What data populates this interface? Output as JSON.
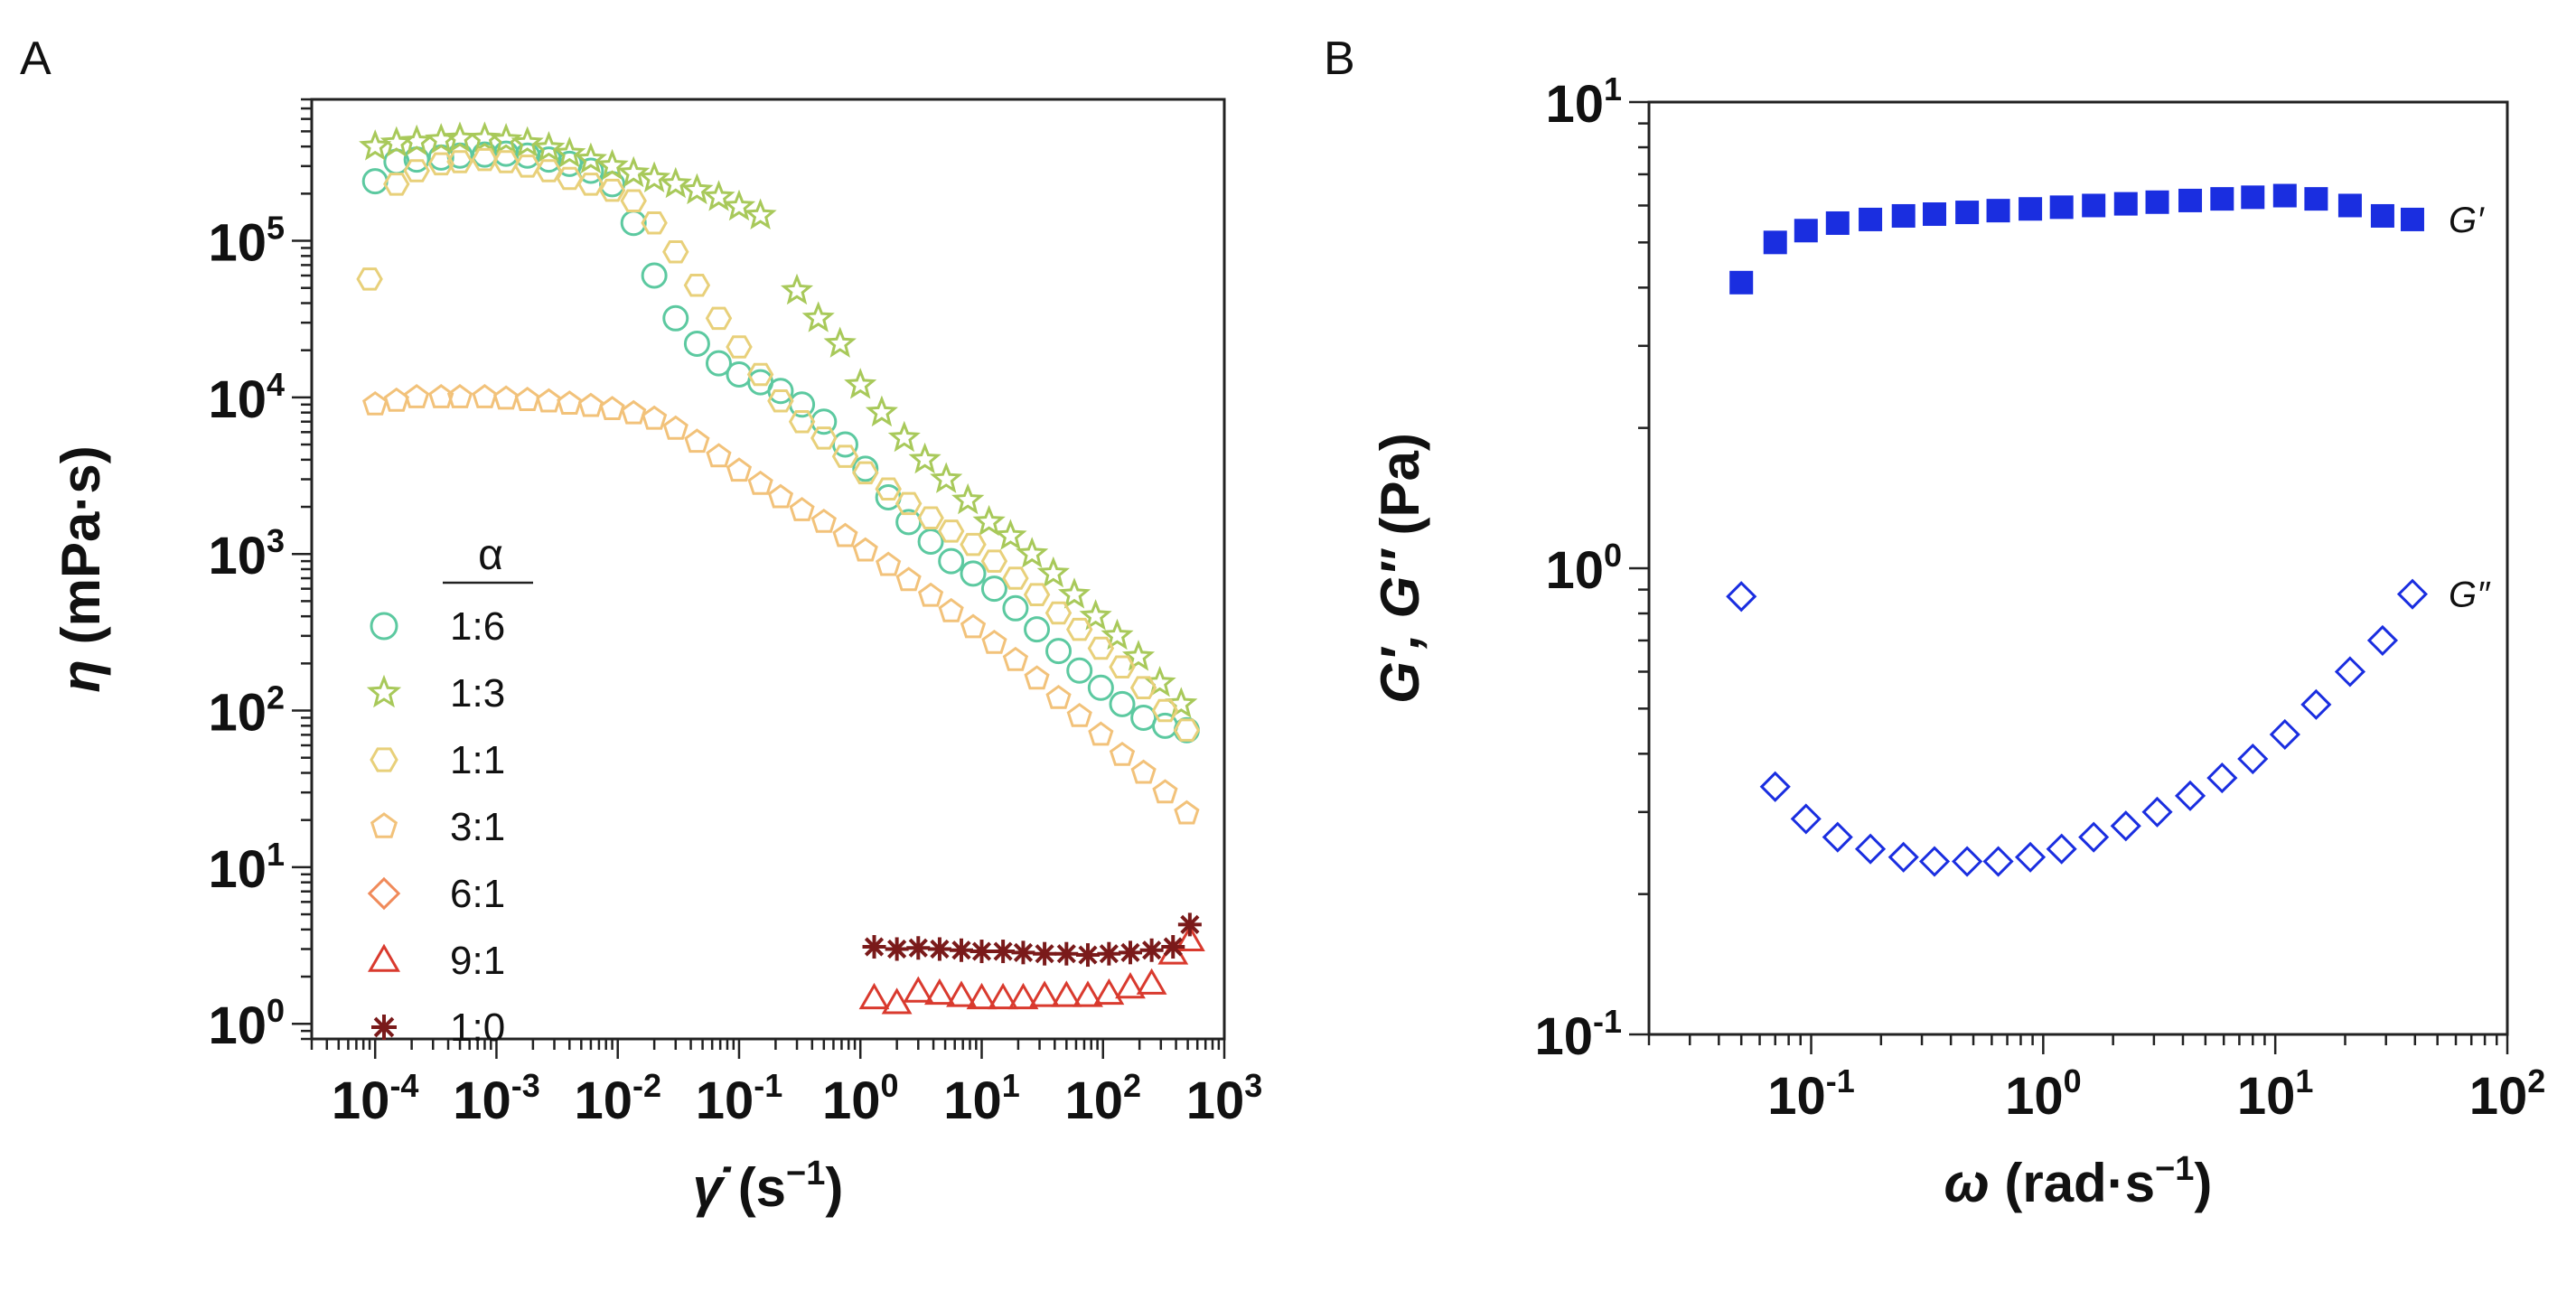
{
  "chart_data": [
    {
      "panel": "A",
      "type": "scatter",
      "x_scale": "log",
      "y_scale": "log",
      "xlim": [
        3e-05,
        1000
      ],
      "ylim": [
        0.8,
        800000
      ],
      "x_ticks": [
        {
          "base": "10",
          "exp": "-4"
        },
        {
          "base": "10",
          "exp": "-3"
        },
        {
          "base": "10",
          "exp": "-2"
        },
        {
          "base": "10",
          "exp": "-1"
        },
        {
          "base": "10",
          "exp": "0"
        },
        {
          "base": "10",
          "exp": "1"
        },
        {
          "base": "10",
          "exp": "2"
        },
        {
          "base": "10",
          "exp": "3"
        }
      ],
      "y_ticks": [
        {
          "base": "10",
          "exp": "0"
        },
        {
          "base": "10",
          "exp": "1"
        },
        {
          "base": "10",
          "exp": "2"
        },
        {
          "base": "10",
          "exp": "3"
        },
        {
          "base": "10",
          "exp": "4"
        },
        {
          "base": "10",
          "exp": "5"
        }
      ],
      "xlabel": {
        "symbol": "γ̇",
        "unit_pre": "(s",
        "unit_sup": "−1",
        "unit_post": ")"
      },
      "ylabel": {
        "symbol": "η",
        "unit": "(mPa·s)"
      },
      "legend_title": "α",
      "legend_placement": "lower-left",
      "series": [
        {
          "name": "1:6",
          "marker": "circle",
          "color": "#5cc9a0",
          "x": [
            0.0001,
            0.00015,
            0.00022,
            0.00035,
            0.0005,
            0.0008,
            0.0012,
            0.0018,
            0.0027,
            0.004,
            0.006,
            0.009,
            0.0135,
            0.02,
            0.03,
            0.045,
            0.068,
            0.1,
            0.15,
            0.22,
            0.33,
            0.5,
            0.75,
            1.1,
            1.7,
            2.5,
            3.8,
            5.6,
            8.5,
            12.7,
            19,
            28.5,
            43,
            64,
            96,
            144,
            216,
            325,
            490
          ],
          "y": [
            240000,
            320000,
            330000,
            340000,
            350000,
            355000,
            360000,
            350000,
            330000,
            310000,
            280000,
            230000,
            130000,
            60000,
            32000,
            22000,
            16500,
            14000,
            12500,
            11000,
            9000,
            7000,
            5000,
            3500,
            2300,
            1600,
            1200,
            900,
            750,
            600,
            450,
            330,
            240,
            180,
            140,
            110,
            90,
            80,
            75
          ]
        },
        {
          "name": "1:3",
          "marker": "star",
          "color": "#a8c95a",
          "x": [
            0.0001,
            0.00015,
            0.00022,
            0.00035,
            0.0005,
            0.0008,
            0.0012,
            0.0018,
            0.0027,
            0.004,
            0.006,
            0.009,
            0.0135,
            0.02,
            0.03,
            0.045,
            0.068,
            0.1,
            0.15,
            0.3,
            0.45,
            0.68,
            1.0,
            1.5,
            2.3,
            3.4,
            5.1,
            7.7,
            11.5,
            17.3,
            26,
            39,
            58,
            87,
            131,
            196,
            294,
            441
          ],
          "y": [
            400000,
            420000,
            430000,
            440000,
            450000,
            450000,
            440000,
            420000,
            390000,
            360000,
            330000,
            300000,
            270000,
            250000,
            230000,
            210000,
            190000,
            165000,
            145000,
            48000,
            32000,
            22000,
            12000,
            8000,
            5500,
            4000,
            3000,
            2200,
            1600,
            1300,
            1000,
            750,
            550,
            400,
            300,
            220,
            150,
            110
          ]
        },
        {
          "name": "1:1",
          "marker": "hexagon",
          "color": "#e8d07a",
          "x": [
            9e-05,
            0.00015,
            0.00022,
            0.00035,
            0.0005,
            0.0008,
            0.0012,
            0.0018,
            0.0027,
            0.004,
            0.006,
            0.009,
            0.0135,
            0.02,
            0.03,
            0.045,
            0.068,
            0.1,
            0.15,
            0.22,
            0.33,
            0.5,
            0.75,
            1.1,
            1.7,
            2.5,
            3.8,
            5.6,
            8.5,
            12.7,
            19,
            28.5,
            43,
            64,
            96,
            144,
            216,
            325,
            490
          ],
          "y": [
            57000,
            230000,
            280000,
            310000,
            320000,
            330000,
            320000,
            300000,
            280000,
            250000,
            230000,
            210000,
            180000,
            130000,
            85000,
            52000,
            32000,
            21000,
            14000,
            9500,
            7000,
            5500,
            4200,
            3300,
            2600,
            2100,
            1700,
            1400,
            1150,
            900,
            700,
            550,
            420,
            330,
            250,
            190,
            140,
            100,
            75
          ]
        },
        {
          "name": "3:1",
          "marker": "pentagon",
          "color": "#f2c27a",
          "x": [
            0.0001,
            0.00015,
            0.00022,
            0.00035,
            0.0005,
            0.0008,
            0.0012,
            0.0018,
            0.0027,
            0.004,
            0.006,
            0.009,
            0.0135,
            0.02,
            0.03,
            0.045,
            0.068,
            0.1,
            0.15,
            0.22,
            0.33,
            0.5,
            0.75,
            1.1,
            1.7,
            2.5,
            3.8,
            5.6,
            8.5,
            12.7,
            19,
            28.5,
            43,
            64,
            96,
            144,
            216,
            325,
            490
          ],
          "y": [
            9000,
            9500,
            10000,
            10000,
            10000,
            10000,
            9800,
            9600,
            9400,
            9100,
            8800,
            8400,
            7900,
            7300,
            6300,
            5200,
            4200,
            3400,
            2800,
            2300,
            1900,
            1600,
            1300,
            1050,
            850,
            680,
            540,
            430,
            340,
            270,
            210,
            160,
            120,
            92,
            70,
            52,
            40,
            30,
            22
          ]
        },
        {
          "name": "6:1",
          "marker": "diamond",
          "color": "#f08a5a",
          "x": [],
          "y": []
        },
        {
          "name": "9:1",
          "marker": "triangle",
          "color": "#d93a2e",
          "x": [
            1.3,
            2.0,
            3.0,
            4.5,
            6.8,
            10,
            15,
            22,
            33,
            50,
            75,
            112,
            168,
            252,
            378,
            520
          ],
          "y": [
            1.45,
            1.35,
            1.6,
            1.55,
            1.5,
            1.45,
            1.45,
            1.45,
            1.5,
            1.5,
            1.5,
            1.55,
            1.7,
            1.8,
            2.8,
            3.4
          ]
        },
        {
          "name": "1:0",
          "marker": "asterisk",
          "color": "#7a1a1a",
          "x": [
            1.3,
            2.0,
            3.0,
            4.5,
            6.8,
            10,
            15,
            22,
            33,
            50,
            75,
            112,
            168,
            252,
            378,
            520
          ],
          "y": [
            3.1,
            3.0,
            3.05,
            3.0,
            2.95,
            2.9,
            2.9,
            2.85,
            2.8,
            2.8,
            2.75,
            2.8,
            2.85,
            2.95,
            3.1,
            4.3
          ]
        }
      ]
    },
    {
      "panel": "B",
      "type": "scatter",
      "x_scale": "log",
      "y_scale": "log",
      "xlim": [
        0.02,
        100
      ],
      "ylim": [
        0.1,
        10
      ],
      "x_ticks": [
        {
          "base": "10",
          "exp": "-1"
        },
        {
          "base": "10",
          "exp": "0"
        },
        {
          "base": "10",
          "exp": "1"
        },
        {
          "base": "10",
          "exp": "2"
        }
      ],
      "y_ticks": [
        {
          "base": "10",
          "exp": "-1"
        },
        {
          "base": "10",
          "exp": "0"
        },
        {
          "base": "10",
          "exp": "1"
        }
      ],
      "xlabel": {
        "symbol": "ω",
        "unit_pre": "(rad·s",
        "unit_sup": "−1",
        "unit_post": ")"
      },
      "ylabel": {
        "symbol": "G′, G″",
        "unit": "(Pa)"
      },
      "series": [
        {
          "name": "G′",
          "marker": "square-filled",
          "color": "#1a2ee0",
          "x": [
            0.05,
            0.07,
            0.095,
            0.13,
            0.18,
            0.25,
            0.34,
            0.47,
            0.64,
            0.88,
            1.2,
            1.65,
            2.27,
            3.1,
            4.3,
            5.9,
            8.0,
            11,
            15,
            21,
            29,
            39
          ],
          "y": [
            4.1,
            5.0,
            5.3,
            5.5,
            5.6,
            5.7,
            5.75,
            5.8,
            5.85,
            5.9,
            5.95,
            6.0,
            6.05,
            6.1,
            6.15,
            6.2,
            6.25,
            6.3,
            6.2,
            6.0,
            5.7,
            5.6
          ]
        },
        {
          "name": "G″",
          "marker": "diamond-open",
          "color": "#1a2ee0",
          "x": [
            0.05,
            0.07,
            0.095,
            0.13,
            0.18,
            0.25,
            0.34,
            0.47,
            0.64,
            0.88,
            1.2,
            1.65,
            2.27,
            3.1,
            4.3,
            5.9,
            8.0,
            11,
            15,
            21,
            29,
            39
          ],
          "y": [
            0.87,
            0.34,
            0.29,
            0.265,
            0.25,
            0.24,
            0.235,
            0.235,
            0.235,
            0.24,
            0.25,
            0.265,
            0.28,
            0.3,
            0.325,
            0.355,
            0.39,
            0.44,
            0.51,
            0.6,
            0.7,
            0.88
          ]
        }
      ]
    }
  ]
}
